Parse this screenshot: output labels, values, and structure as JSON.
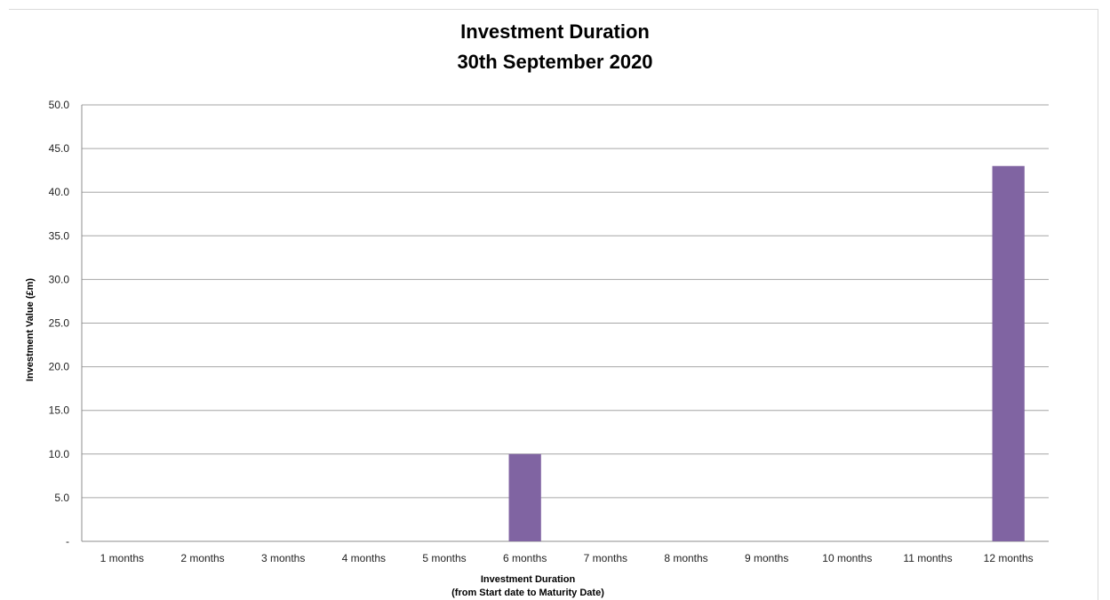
{
  "chart_data": {
    "type": "bar",
    "title": "Investment Duration",
    "subtitle": "30th September 2020",
    "xlabel": "Investment Duration",
    "xlabel_line2": "(from Start date to Maturity Date)",
    "ylabel": "Investment Value (£m)",
    "categories": [
      "1 months",
      "2 months",
      "3 months",
      "4 months",
      "5 months",
      "6 months",
      "7 months",
      "8 months",
      "9 months",
      "10 months",
      "11 months",
      "12 months"
    ],
    "values": [
      0,
      0,
      0,
      0,
      0,
      10,
      0,
      0,
      0,
      0,
      0,
      43
    ],
    "ylim": [
      0,
      50
    ],
    "yticks": [
      "-",
      "5.0",
      "10.0",
      "15.0",
      "20.0",
      "25.0",
      "30.0",
      "35.0",
      "40.0",
      "45.0",
      "50.0"
    ],
    "bar_color": "#8064a2",
    "grid": true
  }
}
